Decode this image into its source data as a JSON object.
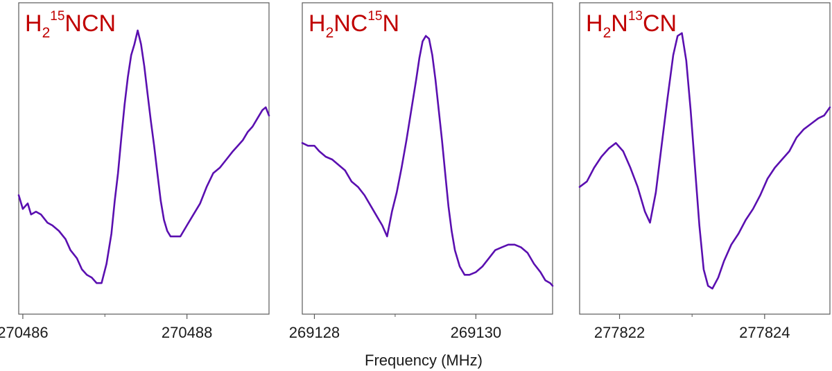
{
  "figure": {
    "xlabel": "Frequency (MHz)"
  },
  "colors": {
    "trace": "#5a0fb0",
    "title": "#c00000",
    "axis": "#595959"
  },
  "chart_data": [
    {
      "type": "line",
      "title": {
        "prefix": "H",
        "sub1": "2",
        "sup": "15",
        "rest": "NCN"
      },
      "xlim": [
        270485.95,
        270489.0
      ],
      "ylim": [
        0,
        1
      ],
      "xticks": [
        270486,
        270488
      ],
      "xtick_labels": [
        "270486",
        "270488"
      ],
      "minor_xticks": [
        270487
      ],
      "series": [
        {
          "values": [
            [
              270485.95,
              0.37
            ],
            [
              270486.0,
              0.32
            ],
            [
              270486.06,
              0.34
            ],
            [
              270486.1,
              0.3
            ],
            [
              270486.16,
              0.31
            ],
            [
              270486.22,
              0.3
            ],
            [
              270486.3,
              0.27
            ],
            [
              270486.36,
              0.26
            ],
            [
              270486.44,
              0.24
            ],
            [
              270486.52,
              0.21
            ],
            [
              270486.58,
              0.17
            ],
            [
              270486.66,
              0.14
            ],
            [
              270486.72,
              0.1
            ],
            [
              270486.78,
              0.08
            ],
            [
              270486.84,
              0.07
            ],
            [
              270486.9,
              0.05
            ],
            [
              270486.96,
              0.05
            ],
            [
              270487.02,
              0.12
            ],
            [
              270487.08,
              0.23
            ],
            [
              270487.12,
              0.35
            ],
            [
              270487.16,
              0.45
            ],
            [
              270487.2,
              0.58
            ],
            [
              270487.24,
              0.7
            ],
            [
              270487.28,
              0.8
            ],
            [
              270487.32,
              0.88
            ],
            [
              270487.36,
              0.92
            ],
            [
              270487.4,
              0.97
            ],
            [
              270487.44,
              0.92
            ],
            [
              270487.48,
              0.84
            ],
            [
              270487.52,
              0.74
            ],
            [
              270487.56,
              0.64
            ],
            [
              270487.6,
              0.55
            ],
            [
              270487.64,
              0.45
            ],
            [
              270487.68,
              0.35
            ],
            [
              270487.72,
              0.28
            ],
            [
              270487.76,
              0.24
            ],
            [
              270487.8,
              0.22
            ],
            [
              270487.86,
              0.22
            ],
            [
              270487.92,
              0.22
            ],
            [
              270488.0,
              0.26
            ],
            [
              270488.08,
              0.3
            ],
            [
              270488.16,
              0.34
            ],
            [
              270488.24,
              0.4
            ],
            [
              270488.32,
              0.45
            ],
            [
              270488.4,
              0.47
            ],
            [
              270488.48,
              0.5
            ],
            [
              270488.56,
              0.53
            ],
            [
              270488.62,
              0.55
            ],
            [
              270488.68,
              0.57
            ],
            [
              270488.74,
              0.6
            ],
            [
              270488.8,
              0.62
            ],
            [
              270488.86,
              0.65
            ],
            [
              270488.92,
              0.68
            ],
            [
              270488.96,
              0.69
            ],
            [
              270489.0,
              0.66
            ]
          ]
        }
      ]
    },
    {
      "type": "line",
      "title": {
        "prefix": "H",
        "sub1": "2",
        "sup": "15",
        "rest": "N",
        "mid": "NC"
      },
      "xlim": [
        269127.85,
        269130.95
      ],
      "ylim": [
        0,
        1
      ],
      "xticks": [
        269128,
        269130
      ],
      "xtick_labels": [
        "269128",
        "269130"
      ],
      "minor_xticks": [
        269129
      ],
      "series": [
        {
          "values": [
            [
              269127.85,
              0.56
            ],
            [
              269127.92,
              0.55
            ],
            [
              269128.0,
              0.55
            ],
            [
              269128.06,
              0.53
            ],
            [
              269128.14,
              0.51
            ],
            [
              269128.22,
              0.5
            ],
            [
              269128.3,
              0.48
            ],
            [
              269128.38,
              0.46
            ],
            [
              269128.46,
              0.42
            ],
            [
              269128.54,
              0.4
            ],
            [
              269128.62,
              0.37
            ],
            [
              269128.7,
              0.33
            ],
            [
              269128.78,
              0.29
            ],
            [
              269128.84,
              0.26
            ],
            [
              269128.9,
              0.22
            ],
            [
              269128.96,
              0.31
            ],
            [
              269129.02,
              0.38
            ],
            [
              269129.08,
              0.47
            ],
            [
              269129.14,
              0.57
            ],
            [
              269129.2,
              0.68
            ],
            [
              269129.26,
              0.79
            ],
            [
              269129.3,
              0.87
            ],
            [
              269129.34,
              0.93
            ],
            [
              269129.38,
              0.95
            ],
            [
              269129.42,
              0.94
            ],
            [
              269129.46,
              0.88
            ],
            [
              269129.5,
              0.79
            ],
            [
              269129.54,
              0.68
            ],
            [
              269129.58,
              0.57
            ],
            [
              269129.62,
              0.45
            ],
            [
              269129.66,
              0.33
            ],
            [
              269129.7,
              0.24
            ],
            [
              269129.74,
              0.17
            ],
            [
              269129.8,
              0.11
            ],
            [
              269129.86,
              0.08
            ],
            [
              269129.92,
              0.08
            ],
            [
              269130.0,
              0.09
            ],
            [
              269130.08,
              0.11
            ],
            [
              269130.16,
              0.14
            ],
            [
              269130.24,
              0.17
            ],
            [
              269130.32,
              0.18
            ],
            [
              269130.4,
              0.19
            ],
            [
              269130.48,
              0.19
            ],
            [
              269130.56,
              0.18
            ],
            [
              269130.64,
              0.16
            ],
            [
              269130.72,
              0.12
            ],
            [
              269130.8,
              0.09
            ],
            [
              269130.86,
              0.06
            ],
            [
              269130.92,
              0.05
            ],
            [
              269130.95,
              0.04
            ]
          ]
        }
      ]
    },
    {
      "type": "line",
      "title": {
        "prefix": "H",
        "sub1": "2",
        "sup": "13",
        "rest": "CN",
        "mid": "N"
      },
      "xlim": [
        277821.45,
        277824.9
      ],
      "ylim": [
        0,
        1
      ],
      "xticks": [
        277822,
        277824
      ],
      "xtick_labels": [
        "277822",
        "277824"
      ],
      "minor_xticks": [
        277823
      ],
      "series": [
        {
          "values": [
            [
              277821.45,
              0.4
            ],
            [
              277821.55,
              0.42
            ],
            [
              277821.65,
              0.47
            ],
            [
              277821.75,
              0.51
            ],
            [
              277821.85,
              0.54
            ],
            [
              277821.95,
              0.56
            ],
            [
              277822.05,
              0.53
            ],
            [
              277822.15,
              0.47
            ],
            [
              277822.25,
              0.4
            ],
            [
              277822.35,
              0.31
            ],
            [
              277822.42,
              0.27
            ],
            [
              277822.5,
              0.38
            ],
            [
              277822.58,
              0.55
            ],
            [
              277822.66,
              0.72
            ],
            [
              277822.74,
              0.88
            ],
            [
              277822.8,
              0.95
            ],
            [
              277822.86,
              0.96
            ],
            [
              277822.92,
              0.86
            ],
            [
              277822.98,
              0.68
            ],
            [
              277823.04,
              0.47
            ],
            [
              277823.1,
              0.26
            ],
            [
              277823.16,
              0.1
            ],
            [
              277823.22,
              0.04
            ],
            [
              277823.28,
              0.03
            ],
            [
              277823.36,
              0.07
            ],
            [
              277823.44,
              0.13
            ],
            [
              277823.54,
              0.19
            ],
            [
              277823.64,
              0.23
            ],
            [
              277823.74,
              0.28
            ],
            [
              277823.84,
              0.32
            ],
            [
              277823.94,
              0.37
            ],
            [
              277824.04,
              0.43
            ],
            [
              277824.14,
              0.47
            ],
            [
              277824.24,
              0.5
            ],
            [
              277824.34,
              0.53
            ],
            [
              277824.44,
              0.58
            ],
            [
              277824.54,
              0.61
            ],
            [
              277824.64,
              0.63
            ],
            [
              277824.74,
              0.65
            ],
            [
              277824.82,
              0.66
            ],
            [
              277824.9,
              0.69
            ]
          ]
        }
      ]
    }
  ]
}
